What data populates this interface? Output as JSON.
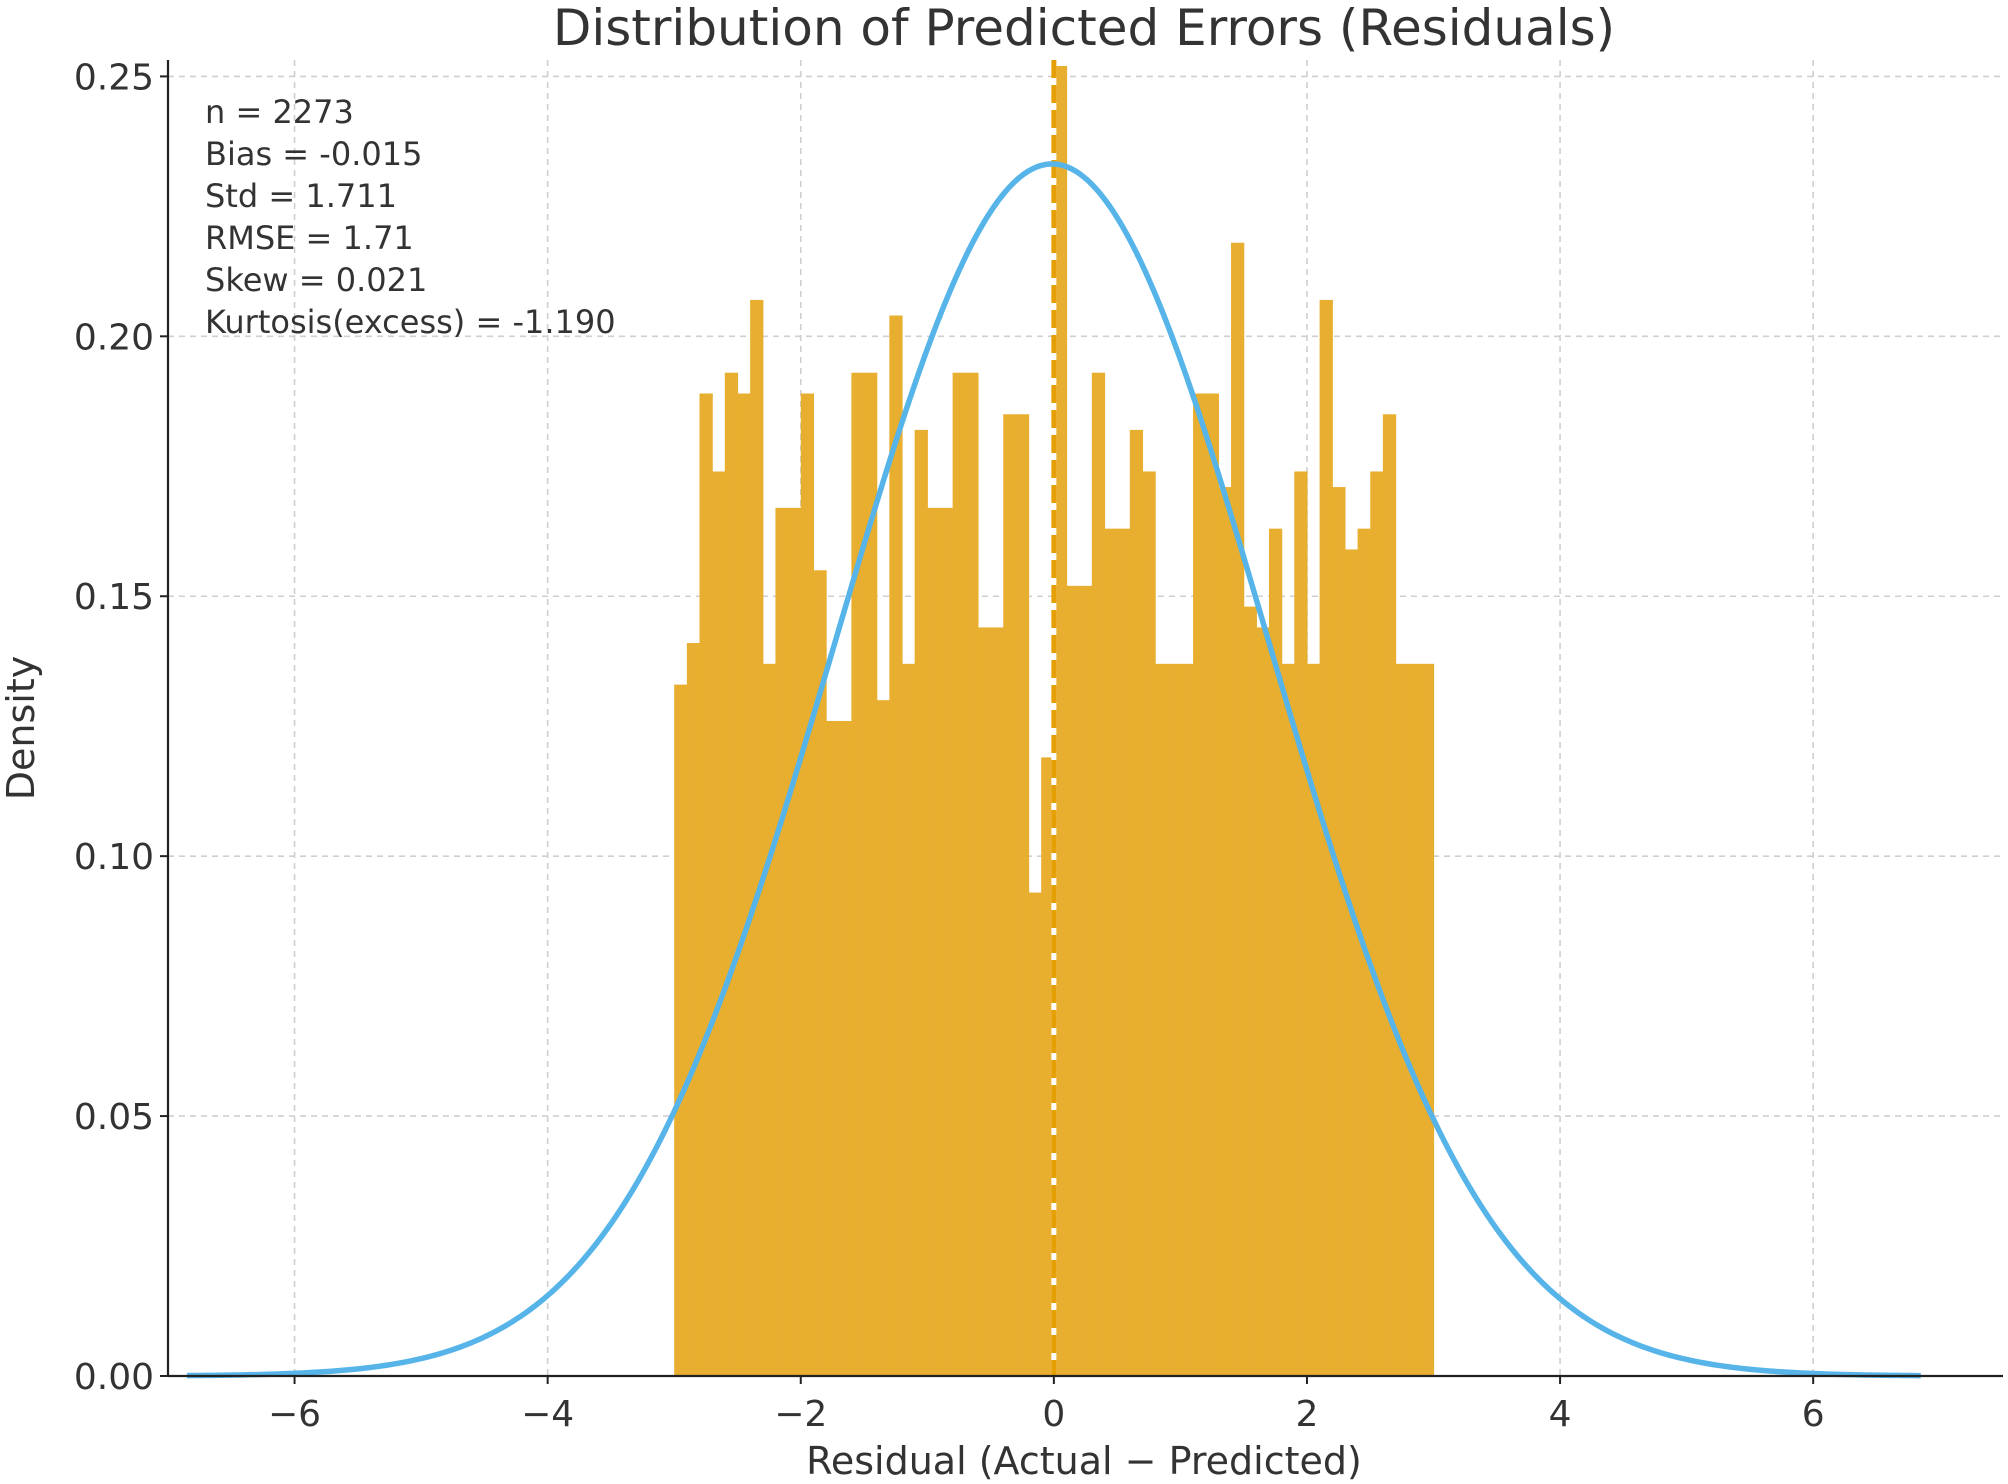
{
  "chart_data": {
    "type": "bar",
    "title": "Distribution of Predicted Errors (Residuals)",
    "xlabel": "Residual (Actual − Predicted)",
    "ylabel": "Density",
    "xlim": [
      -7.0,
      7.5
    ],
    "ylim": [
      0.0,
      0.252
    ],
    "x_ticks": [
      {
        "value": -6,
        "label": "−6"
      },
      {
        "value": -4,
        "label": "−4"
      },
      {
        "value": -2,
        "label": "−2"
      },
      {
        "value": 0,
        "label": "0"
      },
      {
        "value": 2,
        "label": "2"
      },
      {
        "value": 4,
        "label": "4"
      },
      {
        "value": 6,
        "label": "6"
      }
    ],
    "y_ticks": [
      {
        "value": 0.0,
        "label": "0.00"
      },
      {
        "value": 0.05,
        "label": "0.05"
      },
      {
        "value": 0.1,
        "label": "0.10"
      },
      {
        "value": 0.15,
        "label": "0.15"
      },
      {
        "value": 0.2,
        "label": "0.20"
      },
      {
        "value": 0.25,
        "label": "0.25"
      }
    ],
    "grid": true,
    "histogram": {
      "color": "#E8AE2F",
      "bin_start": -3.0,
      "bin_end": 3.0,
      "bin_width": 0.1,
      "density": [
        0.133,
        0.141,
        0.189,
        0.174,
        0.193,
        0.189,
        0.207,
        0.137,
        0.167,
        0.167,
        0.189,
        0.155,
        0.126,
        0.126,
        0.193,
        0.193,
        0.13,
        0.204,
        0.137,
        0.182,
        0.167,
        0.167,
        0.193,
        0.193,
        0.144,
        0.144,
        0.185,
        0.185,
        0.093,
        0.119,
        0.252,
        0.152,
        0.152,
        0.193,
        0.163,
        0.163,
        0.182,
        0.174,
        0.137,
        0.137,
        0.137,
        0.189,
        0.189,
        0.171,
        0.218,
        0.148,
        0.144,
        0.163,
        0.137,
        0.174,
        0.137,
        0.207,
        0.171,
        0.159,
        0.163,
        0.174,
        0.185,
        0.137,
        0.137,
        0.137
      ]
    },
    "fit_curve": {
      "type": "normal_pdf",
      "color": "#56B4E9",
      "mean": -0.015,
      "std": 1.711,
      "x_range": [
        -6.85,
        6.85
      ]
    },
    "reference_line": {
      "x": 0.0,
      "style": "dashed",
      "color": "#E69F00"
    },
    "annotations": [
      "n = 2273",
      "Bias = -0.015",
      "Std = 1.711",
      "RMSE = 1.71",
      "Skew = 0.021",
      "Kurtosis(excess) = -1.190"
    ]
  }
}
